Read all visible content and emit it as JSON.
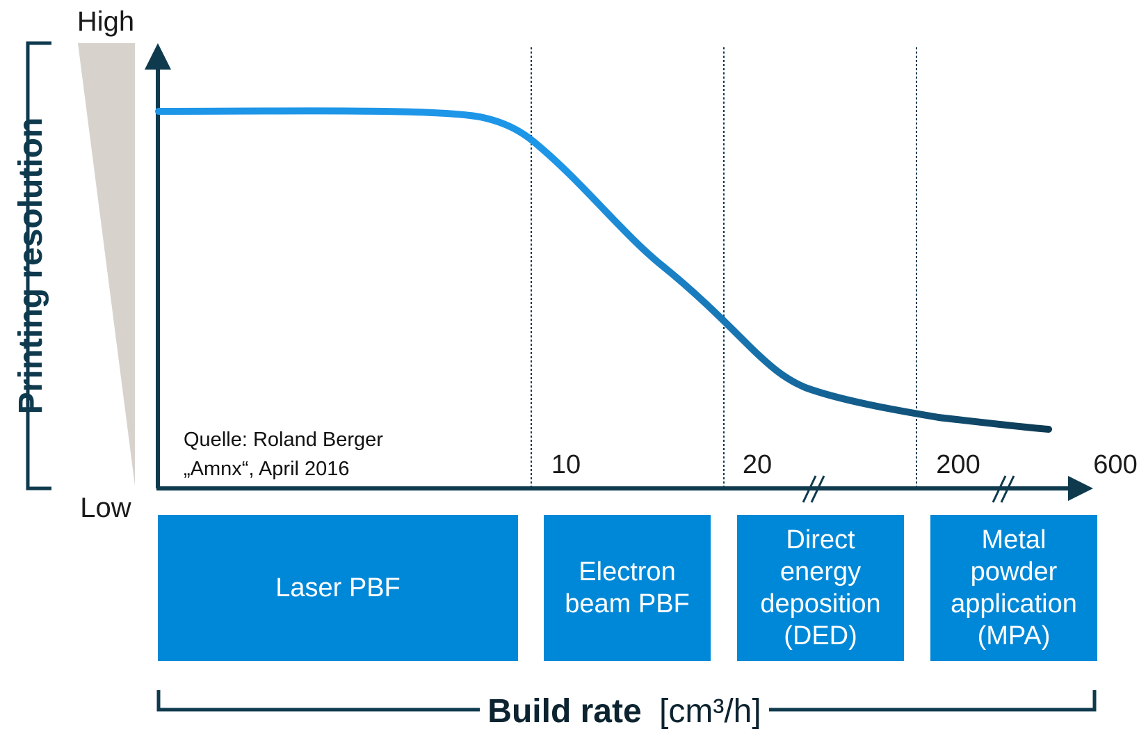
{
  "colors": {
    "axis": "#0f3a4e",
    "curve_start": "#1e96e8",
    "curve_end": "#0d3a52",
    "box_fill": "#0088d8",
    "box_text": "#ffffff",
    "wedge": "#d8d2cd",
    "divider": "#0f3a4e"
  },
  "y_axis": {
    "title": "Printing resolution",
    "high_label": "High",
    "low_label": "Low"
  },
  "x_axis": {
    "title_bold": "Build rate",
    "title_unit": "[cm³/h]",
    "ticks": [
      "10",
      "20",
      "200",
      "600"
    ],
    "axis_breaks": 2
  },
  "source_note": "Quelle: Roland Berger\n„Amnx“, April 2016",
  "categories": [
    {
      "label": "Laser PBF"
    },
    {
      "label": "Electron\nbeam PBF"
    },
    {
      "label": "Direct\nenergy\ndeposition\n(DED)"
    },
    {
      "label": "Metal\npowder\napplication\n(MPA)"
    }
  ]
}
